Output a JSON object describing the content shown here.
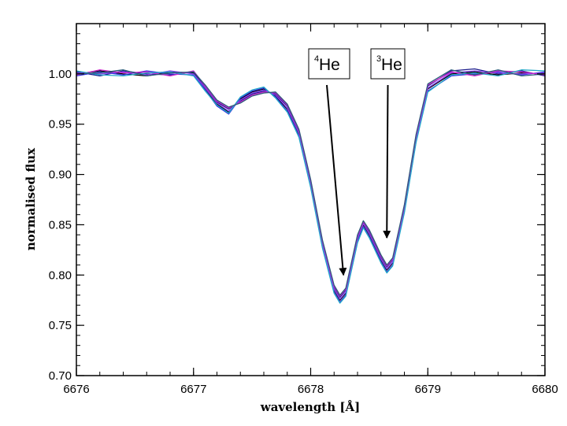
{
  "chart_data": {
    "type": "line",
    "title": "",
    "xlabel": "wavelength [Å]",
    "ylabel": "normalised flux",
    "xlim": [
      6676,
      6680
    ],
    "ylim": [
      0.7,
      1.05
    ],
    "x_ticks": [
      6676,
      6677,
      6678,
      6679,
      6680
    ],
    "x_tick_labels": [
      "6676",
      "6677",
      "6678",
      "6679",
      "6680"
    ],
    "y_ticks": [
      0.7,
      0.75,
      0.8,
      0.85,
      0.9,
      0.95,
      1.0
    ],
    "y_tick_labels": [
      "0.70",
      "0.75",
      "0.80",
      "0.85",
      "0.90",
      "0.95",
      "1.00"
    ],
    "grid": false,
    "legend": "none",
    "x": [
      6676.0,
      6676.2,
      6676.4,
      6676.6,
      6676.8,
      6677.0,
      6677.1,
      6677.2,
      6677.3,
      6677.4,
      6677.5,
      6677.6,
      6677.7,
      6677.8,
      6677.9,
      6678.0,
      6678.1,
      6678.2,
      6678.25,
      6678.3,
      6678.4,
      6678.45,
      6678.5,
      6678.6,
      6678.65,
      6678.7,
      6678.8,
      6678.9,
      6679.0,
      6679.2,
      6679.4,
      6679.6,
      6679.8,
      6680.0
    ],
    "series": [
      {
        "color": "#000000",
        "values": [
          1.0,
          1.003,
          1.0,
          0.998,
          1.002,
          1.001,
          0.985,
          0.97,
          0.962,
          0.975,
          0.982,
          0.985,
          0.978,
          0.965,
          0.94,
          0.89,
          0.83,
          0.785,
          0.775,
          0.782,
          0.835,
          0.85,
          0.84,
          0.815,
          0.805,
          0.812,
          0.865,
          0.935,
          0.985,
          1.0,
          1.002,
          0.999,
          1.001,
          1.0
        ]
      },
      {
        "color": "#1a1a8c",
        "values": [
          1.002,
          0.998,
          1.003,
          1.0,
          0.999,
          1.002,
          0.987,
          0.972,
          0.965,
          0.973,
          0.98,
          0.983,
          0.98,
          0.968,
          0.943,
          0.893,
          0.833,
          0.788,
          0.778,
          0.785,
          0.838,
          0.852,
          0.843,
          0.818,
          0.808,
          0.815,
          0.868,
          0.938,
          0.988,
          1.003,
          1.005,
          1.0,
          1.003,
          0.998
        ]
      },
      {
        "color": "#3333dd",
        "values": [
          0.998,
          1.002,
          0.999,
          1.003,
          1.0,
          0.999,
          0.984,
          0.968,
          0.96,
          0.976,
          0.983,
          0.986,
          0.977,
          0.963,
          0.938,
          0.888,
          0.828,
          0.783,
          0.773,
          0.78,
          0.833,
          0.848,
          0.838,
          0.813,
          0.803,
          0.81,
          0.863,
          0.933,
          0.983,
          0.998,
          1.0,
          1.002,
          0.999,
          1.002
        ]
      },
      {
        "color": "#8844ee",
        "values": [
          1.001,
          1.0,
          1.002,
          0.999,
          1.003,
          1.0,
          0.986,
          0.971,
          0.963,
          0.974,
          0.981,
          0.984,
          0.979,
          0.966,
          0.941,
          0.891,
          0.831,
          0.786,
          0.776,
          0.783,
          0.836,
          0.851,
          0.841,
          0.816,
          0.806,
          0.813,
          0.866,
          0.936,
          0.986,
          1.001,
          1.003,
          1.001,
          1.0,
          1.001
        ]
      },
      {
        "color": "#cc22cc",
        "values": [
          0.999,
          1.004,
          1.001,
          1.002,
          0.998,
          1.003,
          0.988,
          0.973,
          0.966,
          0.972,
          0.979,
          0.982,
          0.981,
          0.969,
          0.944,
          0.894,
          0.834,
          0.789,
          0.779,
          0.786,
          0.839,
          0.853,
          0.844,
          0.819,
          0.809,
          0.816,
          0.869,
          0.939,
          0.989,
          1.002,
          0.998,
          1.003,
          1.002,
          0.999
        ]
      },
      {
        "color": "#22a8c8",
        "values": [
          1.003,
          0.999,
          0.998,
          1.001,
          1.002,
          0.998,
          0.983,
          0.969,
          0.961,
          0.977,
          0.984,
          0.987,
          0.976,
          0.962,
          0.937,
          0.887,
          0.827,
          0.782,
          0.772,
          0.779,
          0.832,
          0.847,
          0.837,
          0.812,
          0.802,
          0.809,
          0.862,
          0.932,
          0.982,
          0.999,
          1.001,
          0.998,
          1.004,
          1.003
        ]
      },
      {
        "color": "#2a5a7a",
        "values": [
          1.0,
          1.001,
          1.004,
          0.998,
          1.001,
          1.002,
          0.989,
          0.974,
          0.967,
          0.971,
          0.978,
          0.981,
          0.982,
          0.97,
          0.945,
          0.895,
          0.835,
          0.79,
          0.78,
          0.787,
          0.84,
          0.854,
          0.845,
          0.82,
          0.81,
          0.817,
          0.87,
          0.94,
          0.99,
          1.004,
          0.999,
          1.004,
          0.998,
          1.0
        ]
      }
    ],
    "annotations": [
      {
        "sup": "4",
        "text": "He",
        "arrow_to": [
          6678.28,
          0.8
        ]
      },
      {
        "sup": "3",
        "text": "He",
        "arrow_to": [
          6678.65,
          0.837
        ]
      }
    ]
  }
}
